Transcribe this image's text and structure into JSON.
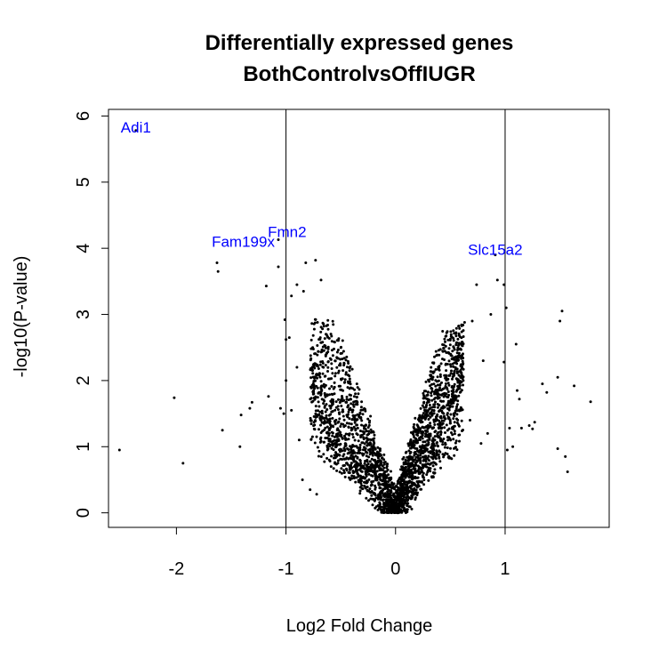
{
  "chart_data": {
    "type": "scatter",
    "title": "Differentially expressed genes",
    "subtitle": "BothControlvsOffIUGR",
    "xlabel": "Log2 Fold Change",
    "ylabel": "-log10(P-value)",
    "xlim": [
      -2.62,
      1.95
    ],
    "ylim": [
      -0.22,
      6.1
    ],
    "x_ticks": [
      -2,
      -1,
      0,
      1
    ],
    "y_ticks": [
      0,
      1,
      2,
      3,
      4,
      5,
      6
    ],
    "x_tick_labels": [
      "-2",
      "-1",
      "0",
      "1"
    ],
    "y_tick_labels": [
      "0",
      "1",
      "2",
      "3",
      "4",
      "5",
      "6"
    ],
    "threshold_lines": [
      -1,
      1
    ],
    "grid": false,
    "legend": "none",
    "point_color": "#000000",
    "label_color": "#0000ff",
    "gene_labels": [
      {
        "name": "Adi1",
        "x": -2.37,
        "y": 5.75
      },
      {
        "name": "Fam199x",
        "x": -1.39,
        "y": 4.02
      },
      {
        "name": "Fmn2",
        "x": -0.99,
        "y": 4.17
      },
      {
        "name": "Slc15a2",
        "x": 0.91,
        "y": 3.9
      }
    ],
    "highlighted_points": [
      {
        "x": -2.37,
        "y": 5.78
      },
      {
        "x": -1.63,
        "y": 3.78
      },
      {
        "x": -1.07,
        "y": 4.13
      },
      {
        "x": 0.91,
        "y": 3.9
      }
    ],
    "outlier_points": [
      {
        "x": -2.52,
        "y": 0.95
      },
      {
        "x": -2.02,
        "y": 1.74
      },
      {
        "x": -1.94,
        "y": 0.75
      },
      {
        "x": -1.62,
        "y": 3.65
      },
      {
        "x": -1.58,
        "y": 1.25
      },
      {
        "x": -1.42,
        "y": 1.0
      },
      {
        "x": -1.41,
        "y": 1.48
      },
      {
        "x": -1.33,
        "y": 1.58
      },
      {
        "x": -1.31,
        "y": 1.67
      },
      {
        "x": -1.18,
        "y": 3.43
      },
      {
        "x": -1.16,
        "y": 1.76
      },
      {
        "x": -1.07,
        "y": 3.72
      },
      {
        "x": -1.05,
        "y": 1.58
      },
      {
        "x": -1.01,
        "y": 2.92
      },
      {
        "x": -1.0,
        "y": 2.62
      },
      {
        "x": -1.0,
        "y": 2.0
      },
      {
        "x": -1.02,
        "y": 1.5
      },
      {
        "x": -0.97,
        "y": 2.65
      },
      {
        "x": -0.95,
        "y": 3.28
      },
      {
        "x": -0.9,
        "y": 3.45
      },
      {
        "x": -0.84,
        "y": 3.35
      },
      {
        "x": -0.82,
        "y": 3.78
      },
      {
        "x": -0.73,
        "y": 3.82
      },
      {
        "x": -0.68,
        "y": 3.52
      },
      {
        "x": -0.95,
        "y": 1.55
      },
      {
        "x": -0.88,
        "y": 1.1
      },
      {
        "x": -0.85,
        "y": 0.5
      },
      {
        "x": -0.78,
        "y": 0.35
      },
      {
        "x": -0.72,
        "y": 0.28
      },
      {
        "x": -0.9,
        "y": 2.2
      },
      {
        "x": 0.74,
        "y": 3.45
      },
      {
        "x": 0.87,
        "y": 3.0
      },
      {
        "x": 0.93,
        "y": 3.52
      },
      {
        "x": 0.99,
        "y": 3.45
      },
      {
        "x": 1.01,
        "y": 3.1
      },
      {
        "x": 0.99,
        "y": 2.28
      },
      {
        "x": 1.02,
        "y": 0.95
      },
      {
        "x": 1.04,
        "y": 1.28
      },
      {
        "x": 1.07,
        "y": 1.0
      },
      {
        "x": 1.1,
        "y": 2.55
      },
      {
        "x": 1.11,
        "y": 1.85
      },
      {
        "x": 1.13,
        "y": 1.72
      },
      {
        "x": 1.15,
        "y": 1.28
      },
      {
        "x": 1.22,
        "y": 1.32
      },
      {
        "x": 1.27,
        "y": 1.37
      },
      {
        "x": 1.34,
        "y": 1.95
      },
      {
        "x": 1.38,
        "y": 1.82
      },
      {
        "x": 1.48,
        "y": 2.05
      },
      {
        "x": 1.5,
        "y": 2.9
      },
      {
        "x": 1.52,
        "y": 3.05
      },
      {
        "x": 1.55,
        "y": 0.85
      },
      {
        "x": 1.57,
        "y": 0.62
      },
      {
        "x": 1.63,
        "y": 1.92
      },
      {
        "x": 1.78,
        "y": 1.68
      },
      {
        "x": 1.48,
        "y": 0.97
      },
      {
        "x": 1.25,
        "y": 1.27
      },
      {
        "x": 0.84,
        "y": 1.2
      },
      {
        "x": 0.8,
        "y": 2.3
      },
      {
        "x": 0.78,
        "y": 1.05
      },
      {
        "x": 0.7,
        "y": 2.9
      },
      {
        "x": 0.63,
        "y": 2.88
      },
      {
        "x": 0.68,
        "y": 1.4
      }
    ],
    "bulk_points": {
      "count": 2600,
      "description": "volcano-shaped cloud of genes centered at (0, 0)"
    }
  }
}
